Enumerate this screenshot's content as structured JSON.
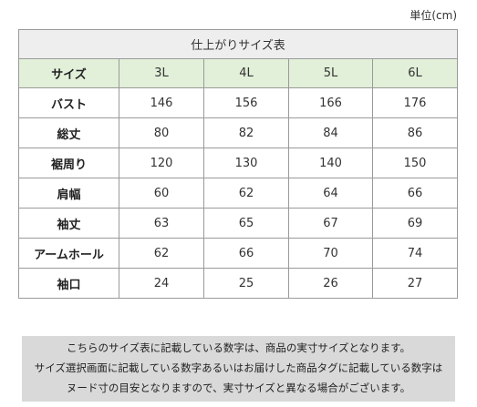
{
  "unit_label": "単位(cm)",
  "table": {
    "title": "仕上がりサイズ表",
    "header_label": "サイズ",
    "sizes": [
      "3L",
      "4L",
      "5L",
      "6L"
    ],
    "rows": [
      {
        "label": "バスト",
        "values": [
          "146",
          "156",
          "166",
          "176"
        ]
      },
      {
        "label": "総丈",
        "values": [
          "80",
          "82",
          "84",
          "86"
        ]
      },
      {
        "label": "裾周り",
        "values": [
          "120",
          "130",
          "140",
          "150"
        ]
      },
      {
        "label": "肩幅",
        "values": [
          "60",
          "62",
          "64",
          "66"
        ]
      },
      {
        "label": "袖丈",
        "values": [
          "63",
          "65",
          "67",
          "69"
        ]
      },
      {
        "label": "アームホール",
        "values": [
          "62",
          "66",
          "70",
          "74"
        ]
      },
      {
        "label": "袖口",
        "values": [
          "24",
          "25",
          "26",
          "27"
        ]
      }
    ]
  },
  "note": {
    "lines": [
      "こちらのサイズ表に記載している数字は、商品の実寸サイズとなります。",
      "サイズ選択画面に記載している数字あるいはお届けした商品タグに記載している数字は",
      "ヌード寸の目安となりますので、実寸サイズと異なる場合がございます。"
    ]
  },
  "colors": {
    "title_bg": "#eeeeee",
    "header_bg": "#e2efd9",
    "note_bg": "#d9d9d9",
    "border": "#9a9a9a"
  }
}
